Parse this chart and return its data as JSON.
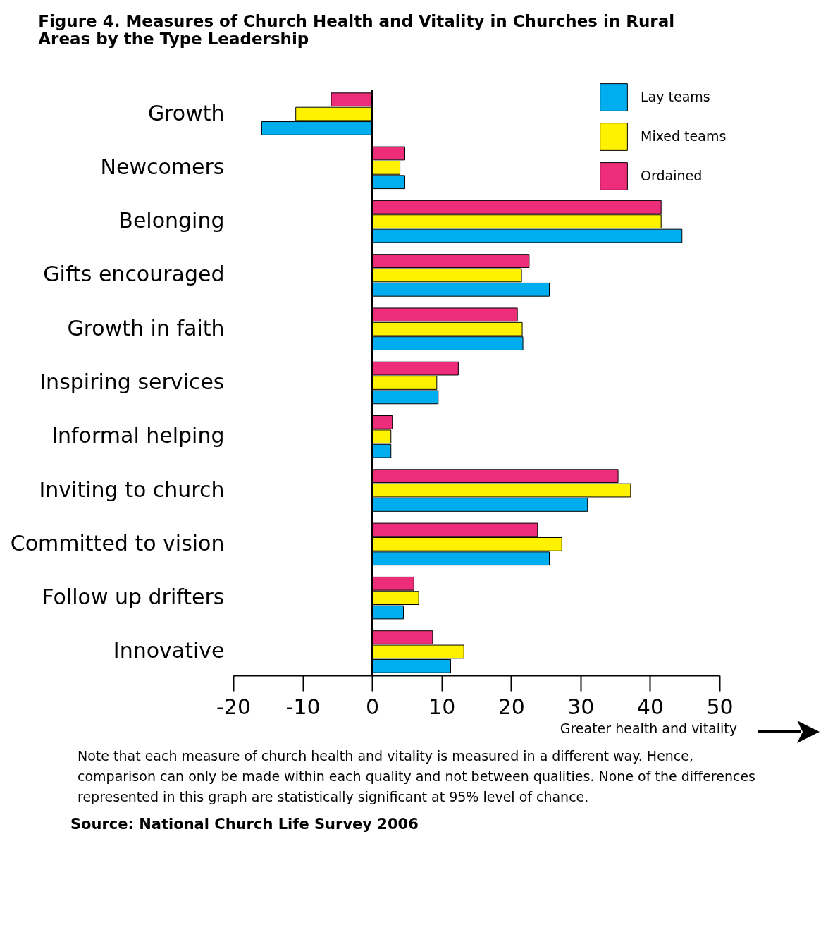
{
  "chart_data": {
    "type": "bar",
    "orientation": "horizontal",
    "title": "Figure 4. Measures of Church Health and Vitality in Churches in Rural Areas by the Type Leadership",
    "categories": [
      "Growth",
      "Newcomers",
      "Belonging",
      "Gifts encouraged",
      "Growth in faith",
      "Inspiring services",
      "Informal helping",
      "Inviting to church",
      "Committed to vision",
      "Follow up drifters",
      "Innovative"
    ],
    "series": [
      {
        "name": "Lay teams",
        "color": "#00aeef",
        "values": [
          -15.9,
          4.7,
          44.6,
          25.5,
          21.7,
          9.5,
          2.7,
          31.0,
          25.5,
          4.5,
          11.3
        ]
      },
      {
        "name": "Mixed teams",
        "color": "#fff200",
        "values": [
          -11.0,
          4.0,
          41.6,
          21.5,
          21.6,
          9.3,
          2.7,
          37.2,
          27.3,
          6.7,
          13.2
        ]
      },
      {
        "name": "Ordained",
        "color": "#ee2d7a",
        "values": [
          -5.9,
          4.7,
          41.6,
          22.6,
          20.9,
          12.4,
          2.9,
          35.4,
          23.8,
          6.0,
          8.7
        ]
      }
    ],
    "xlim": [
      -20,
      50
    ],
    "xticks": [
      -20,
      -10,
      0,
      10,
      20,
      30,
      40,
      50
    ],
    "legend": "top right",
    "annotations": [
      "Greater health and vitality",
      "Note that each measure of church health and vitality is measured in a different way. Hence, comparison can only be made within each quality and not between qualities. None of the differences represented in this graph are statistically significant at 95% level of chance.",
      "Source: National Church Life Survey 2006"
    ]
  }
}
